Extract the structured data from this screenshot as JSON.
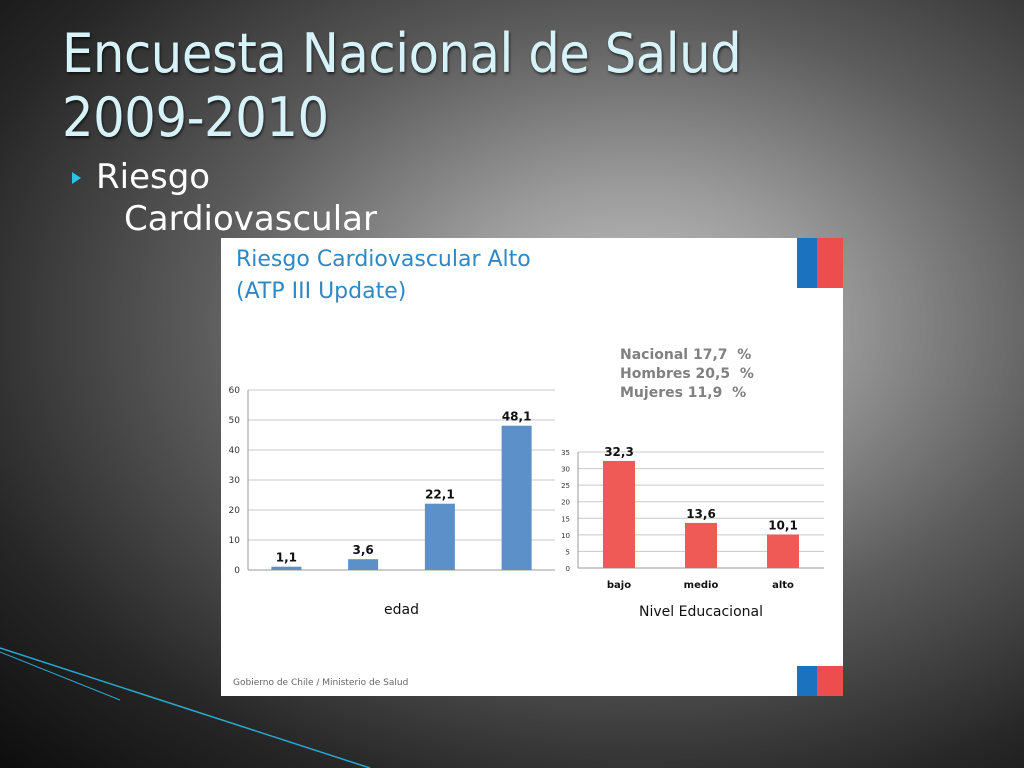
{
  "slide": {
    "title_lines": [
      "Encuesta Nacional de Salud",
      "2009-2010"
    ],
    "subtitle_lines": [
      "Riesgo",
      "Cardiovascular"
    ]
  },
  "panel": {
    "title_lines": [
      "Riesgo Cardiovascular Alto",
      "(ATP III Update)"
    ],
    "summary_lines": [
      "Nacional 17,7  %",
      "Hombres 20,5  %",
      "Mujeres 11,9  %"
    ],
    "footer": "Gobierno de Chile / Ministerio de Salud"
  },
  "colors": {
    "title": "#d6f3f9",
    "panel_title": "#2e88c6",
    "bar_age": "#5b90c8",
    "bar_edu": "#ef5a56",
    "flag_blue": "#1b73bf",
    "flag_red": "#ee4d4d",
    "accent_line": "#27c6e6"
  },
  "chart_data": [
    {
      "type": "bar",
      "categories": [
        "",
        "",
        "",
        ""
      ],
      "values": [
        1.1,
        3.6,
        22.1,
        48.1
      ],
      "data_labels": [
        "1,1",
        "3,6",
        "22,1",
        "48,1"
      ],
      "xlabel": "edad",
      "ylabel": "",
      "ylim": [
        0,
        60
      ],
      "yticks": [
        0,
        10,
        20,
        30,
        40,
        50,
        60
      ],
      "grid": true
    },
    {
      "type": "bar",
      "categories": [
        "bajo",
        "medio",
        "alto"
      ],
      "values": [
        32.3,
        13.6,
        10.1
      ],
      "data_labels": [
        "32,3",
        "13,6",
        "10,1"
      ],
      "xlabel": "Nivel Educacional",
      "ylabel": "",
      "ylim": [
        0,
        35
      ],
      "yticks": [
        0,
        5,
        10,
        15,
        20,
        25,
        30,
        35
      ],
      "grid": true
    }
  ]
}
